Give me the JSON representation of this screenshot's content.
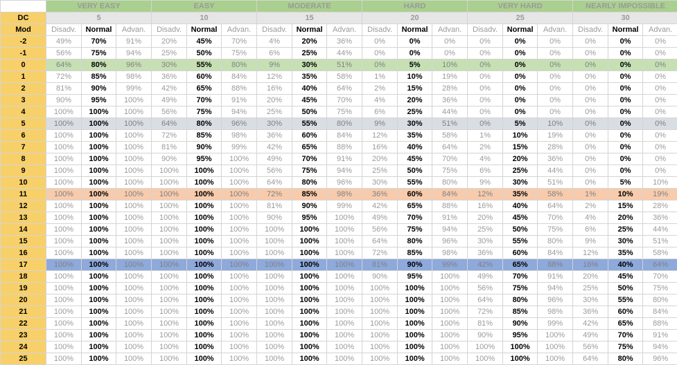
{
  "headers": {
    "dc_label": "DC",
    "mod_label": "Mod",
    "sub_labels": [
      "Disadv.",
      "Normal",
      "Advan."
    ]
  },
  "groups": [
    {
      "name": "VERY EASY",
      "dc": "5"
    },
    {
      "name": "EASY",
      "dc": "10"
    },
    {
      "name": "MODERATE",
      "dc": "15"
    },
    {
      "name": "HARD",
      "dc": "20"
    },
    {
      "name": "VERY HARD",
      "dc": "25"
    },
    {
      "name": "NEARLY IMPOSSIBLE",
      "dc": "30"
    }
  ],
  "highlight_colors": {
    "green": "#c6e0b4",
    "gray": "#d9dde4",
    "orange": "#f8cbad",
    "blue": "#8ea9db",
    "mod_column": "#f7d06a",
    "header": "#a9d08e"
  },
  "rows": [
    {
      "mod": "-2",
      "cells": [
        "49%",
        "70%",
        "91%",
        "20%",
        "45%",
        "70%",
        "4%",
        "20%",
        "36%",
        "0%",
        "0%",
        "0%",
        "0%",
        "0%",
        "0%",
        "0%",
        "0%",
        "0%"
      ]
    },
    {
      "mod": "-1",
      "cells": [
        "56%",
        "75%",
        "94%",
        "25%",
        "50%",
        "75%",
        "6%",
        "25%",
        "44%",
        "0%",
        "0%",
        "0%",
        "0%",
        "0%",
        "0%",
        "0%",
        "0%",
        "0%"
      ]
    },
    {
      "mod": "0",
      "highlight": "green",
      "cells": [
        "64%",
        "80%",
        "96%",
        "30%",
        "55%",
        "80%",
        "9%",
        "30%",
        "51%",
        "0%",
        "5%",
        "10%",
        "0%",
        "0%",
        "0%",
        "0%",
        "0%",
        "0%"
      ]
    },
    {
      "mod": "1",
      "cells": [
        "72%",
        "85%",
        "98%",
        "36%",
        "60%",
        "84%",
        "12%",
        "35%",
        "58%",
        "1%",
        "10%",
        "19%",
        "0%",
        "0%",
        "0%",
        "0%",
        "0%",
        "0%"
      ]
    },
    {
      "mod": "2",
      "cells": [
        "81%",
        "90%",
        "99%",
        "42%",
        "65%",
        "88%",
        "16%",
        "40%",
        "64%",
        "2%",
        "15%",
        "28%",
        "0%",
        "0%",
        "0%",
        "0%",
        "0%",
        "0%"
      ]
    },
    {
      "mod": "3",
      "cells": [
        "90%",
        "95%",
        "100%",
        "49%",
        "70%",
        "91%",
        "20%",
        "45%",
        "70%",
        "4%",
        "20%",
        "36%",
        "0%",
        "0%",
        "0%",
        "0%",
        "0%",
        "0%"
      ]
    },
    {
      "mod": "4",
      "cells": [
        "100%",
        "100%",
        "100%",
        "56%",
        "75%",
        "94%",
        "25%",
        "50%",
        "75%",
        "6%",
        "25%",
        "44%",
        "0%",
        "0%",
        "0%",
        "0%",
        "0%",
        "0%"
      ]
    },
    {
      "mod": "5",
      "highlight": "gray",
      "cells": [
        "100%",
        "100%",
        "100%",
        "64%",
        "80%",
        "96%",
        "30%",
        "55%",
        "80%",
        "9%",
        "30%",
        "51%",
        "0%",
        "5%",
        "10%",
        "0%",
        "0%",
        "0%"
      ]
    },
    {
      "mod": "6",
      "cells": [
        "100%",
        "100%",
        "100%",
        "72%",
        "85%",
        "98%",
        "36%",
        "60%",
        "84%",
        "12%",
        "35%",
        "58%",
        "1%",
        "10%",
        "19%",
        "0%",
        "0%",
        "0%"
      ]
    },
    {
      "mod": "7",
      "cells": [
        "100%",
        "100%",
        "100%",
        "81%",
        "90%",
        "99%",
        "42%",
        "65%",
        "88%",
        "16%",
        "40%",
        "64%",
        "2%",
        "15%",
        "28%",
        "0%",
        "0%",
        "0%"
      ]
    },
    {
      "mod": "8",
      "cells": [
        "100%",
        "100%",
        "100%",
        "90%",
        "95%",
        "100%",
        "49%",
        "70%",
        "91%",
        "20%",
        "45%",
        "70%",
        "4%",
        "20%",
        "36%",
        "0%",
        "0%",
        "0%"
      ]
    },
    {
      "mod": "9",
      "cells": [
        "100%",
        "100%",
        "100%",
        "100%",
        "100%",
        "100%",
        "56%",
        "75%",
        "94%",
        "25%",
        "50%",
        "75%",
        "6%",
        "25%",
        "44%",
        "0%",
        "0%",
        "0%"
      ]
    },
    {
      "mod": "10",
      "cells": [
        "100%",
        "100%",
        "100%",
        "100%",
        "100%",
        "100%",
        "64%",
        "80%",
        "96%",
        "30%",
        "55%",
        "80%",
        "9%",
        "30%",
        "51%",
        "0%",
        "5%",
        "10%"
      ]
    },
    {
      "mod": "11",
      "highlight": "orange",
      "cells": [
        "100%",
        "100%",
        "100%",
        "100%",
        "100%",
        "100%",
        "72%",
        "85%",
        "98%",
        "36%",
        "60%",
        "84%",
        "12%",
        "35%",
        "58%",
        "1%",
        "10%",
        "19%"
      ]
    },
    {
      "mod": "12",
      "cells": [
        "100%",
        "100%",
        "100%",
        "100%",
        "100%",
        "100%",
        "81%",
        "90%",
        "99%",
        "42%",
        "65%",
        "88%",
        "16%",
        "40%",
        "64%",
        "2%",
        "15%",
        "28%"
      ]
    },
    {
      "mod": "13",
      "cells": [
        "100%",
        "100%",
        "100%",
        "100%",
        "100%",
        "100%",
        "90%",
        "95%",
        "100%",
        "49%",
        "70%",
        "91%",
        "20%",
        "45%",
        "70%",
        "4%",
        "20%",
        "36%"
      ]
    },
    {
      "mod": "14",
      "cells": [
        "100%",
        "100%",
        "100%",
        "100%",
        "100%",
        "100%",
        "100%",
        "100%",
        "100%",
        "56%",
        "75%",
        "94%",
        "25%",
        "50%",
        "75%",
        "6%",
        "25%",
        "44%"
      ]
    },
    {
      "mod": "15",
      "cells": [
        "100%",
        "100%",
        "100%",
        "100%",
        "100%",
        "100%",
        "100%",
        "100%",
        "100%",
        "64%",
        "80%",
        "96%",
        "30%",
        "55%",
        "80%",
        "9%",
        "30%",
        "51%"
      ]
    },
    {
      "mod": "16",
      "cells": [
        "100%",
        "100%",
        "100%",
        "100%",
        "100%",
        "100%",
        "100%",
        "100%",
        "100%",
        "72%",
        "85%",
        "98%",
        "36%",
        "60%",
        "84%",
        "12%",
        "35%",
        "58%"
      ]
    },
    {
      "mod": "17",
      "highlight": "blue",
      "cells": [
        "100%",
        "100%",
        "100%",
        "100%",
        "100%",
        "100%",
        "100%",
        "100%",
        "100%",
        "81%",
        "90%",
        "99%",
        "42%",
        "65%",
        "88%",
        "16%",
        "40%",
        "64%"
      ]
    },
    {
      "mod": "18",
      "cells": [
        "100%",
        "100%",
        "100%",
        "100%",
        "100%",
        "100%",
        "100%",
        "100%",
        "100%",
        "90%",
        "95%",
        "100%",
        "49%",
        "70%",
        "91%",
        "20%",
        "45%",
        "70%"
      ]
    },
    {
      "mod": "19",
      "cells": [
        "100%",
        "100%",
        "100%",
        "100%",
        "100%",
        "100%",
        "100%",
        "100%",
        "100%",
        "100%",
        "100%",
        "100%",
        "56%",
        "75%",
        "94%",
        "25%",
        "50%",
        "75%"
      ]
    },
    {
      "mod": "20",
      "cells": [
        "100%",
        "100%",
        "100%",
        "100%",
        "100%",
        "100%",
        "100%",
        "100%",
        "100%",
        "100%",
        "100%",
        "100%",
        "64%",
        "80%",
        "96%",
        "30%",
        "55%",
        "80%"
      ]
    },
    {
      "mod": "21",
      "cells": [
        "100%",
        "100%",
        "100%",
        "100%",
        "100%",
        "100%",
        "100%",
        "100%",
        "100%",
        "100%",
        "100%",
        "100%",
        "72%",
        "85%",
        "98%",
        "36%",
        "60%",
        "84%"
      ]
    },
    {
      "mod": "22",
      "cells": [
        "100%",
        "100%",
        "100%",
        "100%",
        "100%",
        "100%",
        "100%",
        "100%",
        "100%",
        "100%",
        "100%",
        "100%",
        "81%",
        "90%",
        "99%",
        "42%",
        "65%",
        "88%"
      ]
    },
    {
      "mod": "23",
      "cells": [
        "100%",
        "100%",
        "100%",
        "100%",
        "100%",
        "100%",
        "100%",
        "100%",
        "100%",
        "100%",
        "100%",
        "100%",
        "90%",
        "95%",
        "100%",
        "49%",
        "70%",
        "91%"
      ]
    },
    {
      "mod": "24",
      "cells": [
        "100%",
        "100%",
        "100%",
        "100%",
        "100%",
        "100%",
        "100%",
        "100%",
        "100%",
        "100%",
        "100%",
        "100%",
        "100%",
        "100%",
        "100%",
        "56%",
        "75%",
        "94%"
      ]
    },
    {
      "mod": "25",
      "cells": [
        "100%",
        "100%",
        "100%",
        "100%",
        "100%",
        "100%",
        "100%",
        "100%",
        "100%",
        "100%",
        "100%",
        "100%",
        "100%",
        "100%",
        "100%",
        "64%",
        "80%",
        "96%"
      ]
    }
  ]
}
